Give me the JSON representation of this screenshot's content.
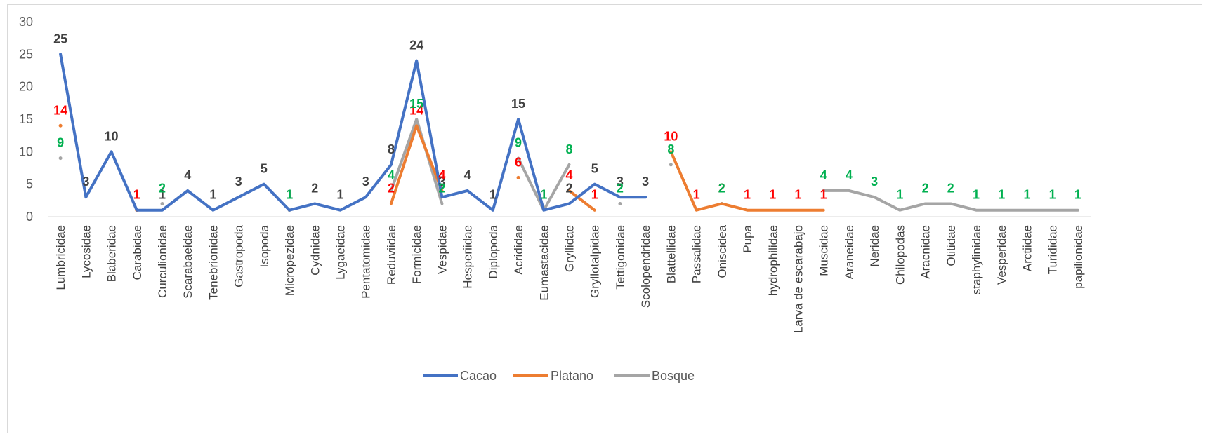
{
  "chart_data": {
    "type": "line",
    "title": "",
    "xlabel": "",
    "ylabel": "",
    "ylim": [
      0,
      30
    ],
    "yticks": [
      0,
      5,
      10,
      15,
      20,
      25,
      30
    ],
    "grid": false,
    "legend_position": "bottom",
    "categories": [
      "Lumbricidae",
      "Lycosidae",
      "Blaberidae",
      "Carabidae",
      "Curculionidae",
      "Scarabaeidae",
      "Tenebrionidae",
      "Gastropoda",
      "Isopoda",
      "Micropezidae",
      "Cydnidae",
      "Lygaeidae",
      "Pentatomidae",
      "Reduviidae",
      "Formicidae",
      "Vespidae",
      "Hesperiidae",
      "Diplopoda",
      "Acrididae",
      "Eumastacidae",
      "Gryllidae",
      "Gryllotalpidae",
      "Tettigonidae",
      "Scolopendridae",
      "Blattellidae",
      "Passalidae",
      "Oniscidea",
      "Pupa",
      "hydrophilidae",
      "Larva de escarabajo",
      "Muscidae",
      "Araneidae",
      "Neridae",
      "Chilopodas",
      "Aracnidae",
      "Otitidae",
      "staphylinidae",
      "Vesperidae",
      "Arctiidae",
      "Turididae",
      "papilionidae"
    ],
    "series": [
      {
        "name": "Cacao",
        "color": "#4472C4",
        "values": [
          25,
          3,
          10,
          1,
          1,
          4,
          1,
          3,
          5,
          1,
          2,
          1,
          3,
          8,
          24,
          3,
          4,
          1,
          15,
          1,
          2,
          5,
          3,
          3,
          null,
          null,
          null,
          null,
          null,
          null,
          null,
          null,
          null,
          null,
          null,
          null,
          null,
          null,
          null,
          null,
          null
        ]
      },
      {
        "name": "Platano",
        "color": "#ED7D31",
        "values": [
          14,
          null,
          null,
          1,
          null,
          null,
          null,
          null,
          null,
          null,
          null,
          null,
          null,
          2,
          14,
          4,
          null,
          null,
          6,
          null,
          4,
          1,
          null,
          null,
          10,
          1,
          2,
          1,
          1,
          1,
          1,
          null,
          null,
          null,
          null,
          null,
          null,
          null,
          null,
          null,
          null
        ]
      },
      {
        "name": "Bosque",
        "color": "#A5A5A5",
        "values": [
          9,
          null,
          null,
          null,
          2,
          null,
          null,
          null,
          null,
          1,
          null,
          null,
          null,
          4,
          15,
          2,
          null,
          null,
          9,
          1,
          8,
          null,
          2,
          null,
          8,
          null,
          2,
          null,
          null,
          null,
          4,
          4,
          3,
          1,
          2,
          2,
          1,
          1,
          1,
          1,
          1
        ]
      }
    ],
    "label_colors": {
      "Cacao": "#404040",
      "Platano": "#FF0000",
      "Bosque": "#00B050"
    }
  }
}
